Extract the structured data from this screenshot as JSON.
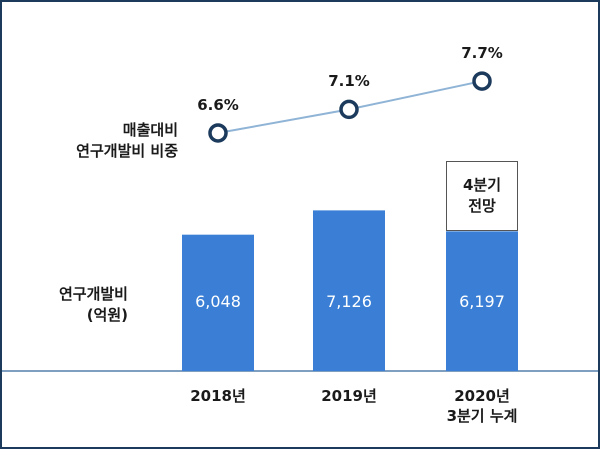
{
  "chart_data": {
    "type": "bar+line",
    "categories": [
      "2018년",
      "2019년",
      "2020년\n3분기 누계"
    ],
    "bars": {
      "label": "연구개발비\n(억원)",
      "values": [
        6048,
        7126,
        6197
      ],
      "value_labels": [
        "6,048",
        "7,126",
        "6,197"
      ],
      "color": "#3a7fd5",
      "forecast_label": "4분기\n전망"
    },
    "line": {
      "label": "매출대비\n연구개발비 비중",
      "values": [
        6.6,
        7.1,
        7.7
      ],
      "value_labels": [
        "6.6%",
        "7.1%",
        "7.7%"
      ],
      "color": "#8fb4d6",
      "marker_color": "#1b3a5c"
    },
    "baseline_color": "#7f9fc0"
  }
}
